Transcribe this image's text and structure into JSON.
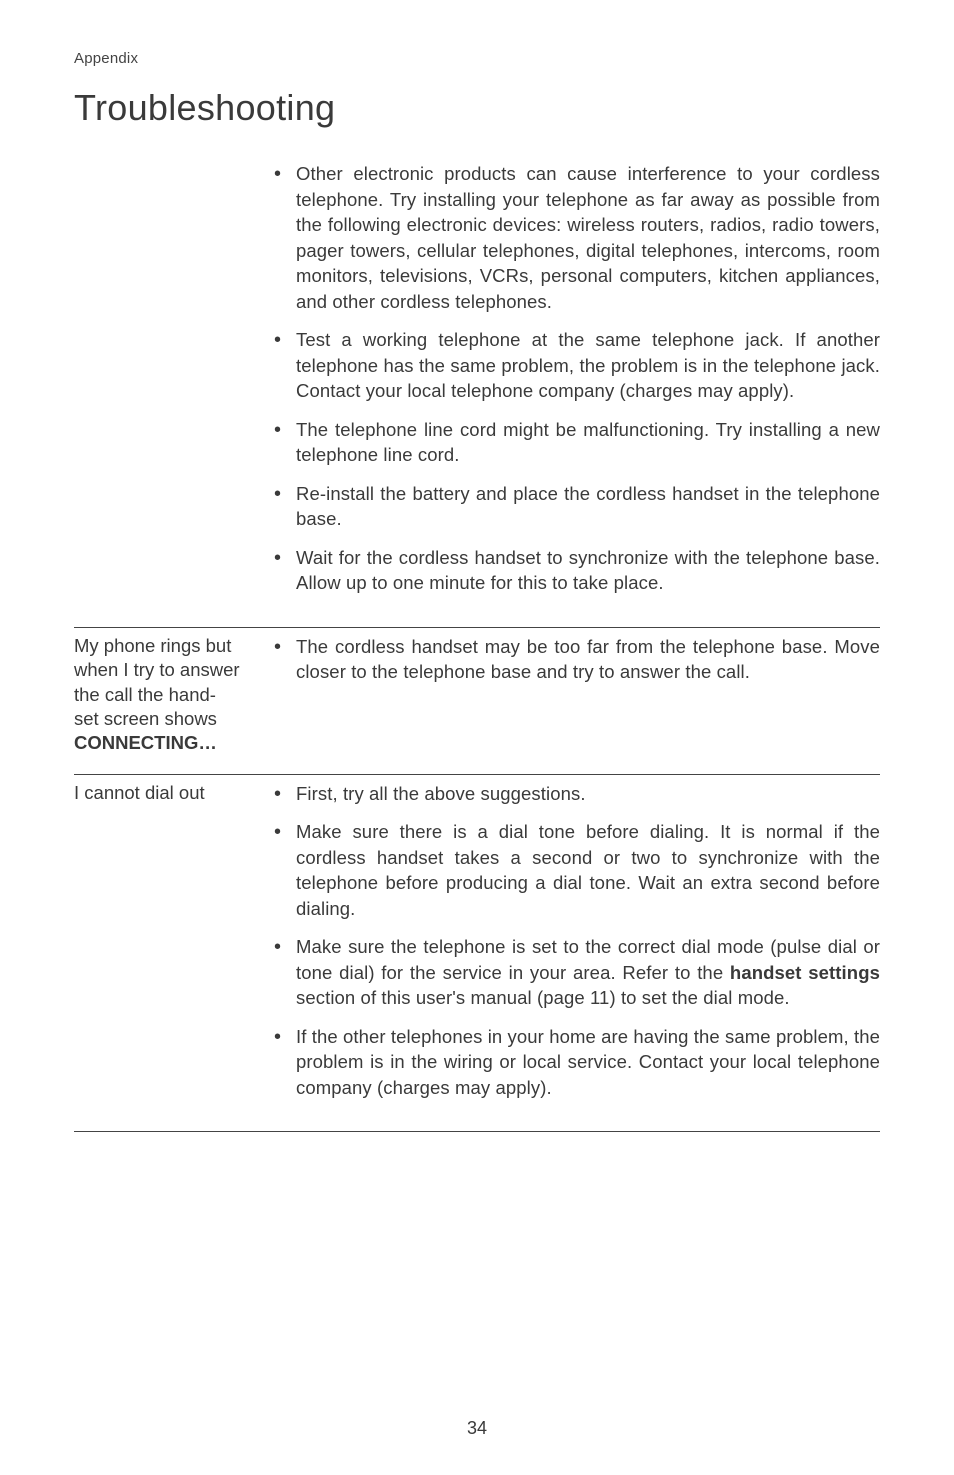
{
  "colors": {
    "text": "#3a3a3a",
    "rule": "#444444",
    "background": "#ffffff"
  },
  "typography": {
    "body_pt": 14,
    "title_pt": 27,
    "header_pt": 11
  },
  "header": {
    "section": "Appendix"
  },
  "title": "Troubleshooting",
  "rows": [
    {
      "label_lines": [],
      "bullets": [
        {
          "text": "Other electronic products can cause interference to your cordless telephone. Try installing your telephone as far away as possible from the following electronic devices: wireless routers, radios, radio towers, pager towers, cellular telephones, digital telephones, intercoms, room monitors, televisions, VCRs, personal computers, kitchen appliances, and other cordless telephones."
        },
        {
          "text": "Test a working telephone at the same telephone jack. If another telephone has the same problem, the problem is in the telephone jack. Contact your local telephone company (charges may apply)."
        },
        {
          "text": "The telephone line cord might be malfunctioning. Try installing a new telephone line cord."
        },
        {
          "text": "Re-install the battery and place the cordless handset in the telephone base."
        },
        {
          "text": "Wait for the cordless handset to synchronize with the telephone base. Allow up to one minute for this to take place."
        }
      ]
    },
    {
      "label_lines": [
        "My phone rings but",
        "when I try to answer",
        "the call the hand-",
        "set screen shows"
      ],
      "label_bold_lines": [
        "CONNECTING…"
      ],
      "bullets": [
        {
          "text": "The cordless handset may be too far from the telephone base. Move closer to the telephone base and try to answer the call."
        }
      ]
    },
    {
      "label_lines": [
        "I cannot dial out"
      ],
      "bullets": [
        {
          "text": "First, try all the above suggestions."
        },
        {
          "text": "Make sure there is a dial tone before dialing. It is normal if the cordless handset takes a second or two to synchronize with the telephone before producing a dial tone. Wait an extra second before dialing."
        },
        {
          "pre": "Make sure the telephone is set to the correct dial mode (pulse dial or tone dial) for the service in your area. Refer to the ",
          "bold": "handset settings",
          "post": " section of this user's manual (page 11) to set the dial mode."
        },
        {
          "text": "If the other telephones in your home are having the same problem, the problem is in the wiring or local service. Contact your local telephone company (charges may apply)."
        }
      ]
    }
  ],
  "page_number": "34"
}
